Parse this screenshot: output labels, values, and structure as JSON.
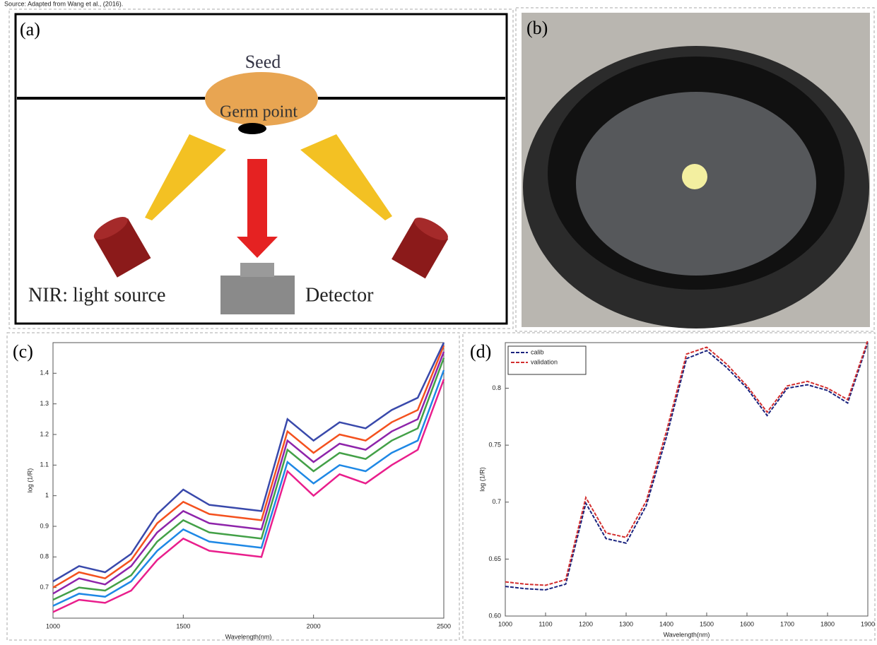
{
  "caption": "Source: Adapted from Wang et al., (2016).",
  "panels": {
    "a": {
      "label": "(a)",
      "seed": "Seed",
      "germ": "Germ point",
      "source": "NIR: light source",
      "detector": "Detector"
    },
    "b": {
      "label": "(b)"
    }
  },
  "chart_data": [
    {
      "type": "line",
      "panel_label": "(c)",
      "xlabel": "Wavelength(nm)",
      "ylabel": "log (1/R)",
      "x": [
        1000,
        1100,
        1200,
        1300,
        1400,
        1500,
        1600,
        1700,
        1800,
        1900,
        2000,
        2100,
        2200,
        2300,
        2400,
        2500
      ],
      "xlim": [
        1000,
        2500
      ],
      "xticks": [
        1000,
        1500,
        2000,
        2500
      ],
      "ylim": [
        0.6,
        1.5
      ],
      "yticks": [
        0.7,
        0.8,
        0.9,
        1,
        1.1,
        1.2,
        1.3,
        1.4
      ],
      "series": [
        {
          "color": "#e91e8c",
          "values": [
            0.62,
            0.66,
            0.65,
            0.69,
            0.79,
            0.86,
            0.82,
            0.81,
            0.8,
            1.08,
            1.0,
            1.07,
            1.04,
            1.1,
            1.15,
            1.38
          ]
        },
        {
          "color": "#1e88e5",
          "values": [
            0.64,
            0.68,
            0.67,
            0.72,
            0.82,
            0.89,
            0.85,
            0.84,
            0.83,
            1.11,
            1.04,
            1.1,
            1.08,
            1.14,
            1.18,
            1.41
          ]
        },
        {
          "color": "#43a047",
          "values": [
            0.66,
            0.7,
            0.69,
            0.74,
            0.85,
            0.92,
            0.88,
            0.87,
            0.86,
            1.15,
            1.08,
            1.14,
            1.12,
            1.18,
            1.22,
            1.45
          ]
        },
        {
          "color": "#8e24aa",
          "values": [
            0.68,
            0.73,
            0.71,
            0.77,
            0.88,
            0.95,
            0.91,
            0.9,
            0.89,
            1.18,
            1.11,
            1.17,
            1.15,
            1.21,
            1.25,
            1.47
          ]
        },
        {
          "color": "#f4511e",
          "values": [
            0.7,
            0.75,
            0.73,
            0.79,
            0.91,
            0.98,
            0.94,
            0.93,
            0.92,
            1.21,
            1.14,
            1.2,
            1.18,
            1.24,
            1.28,
            1.49
          ]
        },
        {
          "color": "#3949ab",
          "values": [
            0.72,
            0.77,
            0.75,
            0.81,
            0.94,
            1.02,
            0.97,
            0.96,
            0.95,
            1.25,
            1.18,
            1.24,
            1.22,
            1.28,
            1.32,
            1.5
          ]
        }
      ]
    },
    {
      "type": "line",
      "panel_label": "(d)",
      "xlabel": "Wavelength(nm)",
      "ylabel": "log (1/R)",
      "x": [
        1000,
        1050,
        1100,
        1150,
        1200,
        1250,
        1300,
        1350,
        1400,
        1450,
        1500,
        1550,
        1600,
        1650,
        1700,
        1750,
        1800,
        1850,
        1900
      ],
      "xlim": [
        1000,
        1900
      ],
      "xticks": [
        1000,
        1100,
        1200,
        1300,
        1400,
        1500,
        1600,
        1700,
        1800,
        1900
      ],
      "ylim": [
        0.6,
        0.84
      ],
      "yticks": [
        {
          "value": 0.6,
          "label": "0.60"
        },
        {
          "value": 0.65,
          "label": "0.65"
        },
        0.7,
        {
          "value": 0.75,
          "label": "0.75"
        },
        0.8
      ],
      "legend": "upper left",
      "series": [
        {
          "name": "calib",
          "color": "#1a237e",
          "values": [
            0.626,
            0.624,
            0.623,
            0.628,
            0.699,
            0.668,
            0.664,
            0.697,
            0.757,
            0.826,
            0.833,
            0.818,
            0.8,
            0.776,
            0.8,
            0.803,
            0.798,
            0.787,
            0.84
          ]
        },
        {
          "name": "validation",
          "color": "#d32f2f",
          "values": [
            0.63,
            0.628,
            0.627,
            0.632,
            0.704,
            0.673,
            0.669,
            0.701,
            0.762,
            0.83,
            0.836,
            0.821,
            0.802,
            0.779,
            0.802,
            0.806,
            0.8,
            0.79,
            0.842
          ]
        }
      ]
    }
  ]
}
